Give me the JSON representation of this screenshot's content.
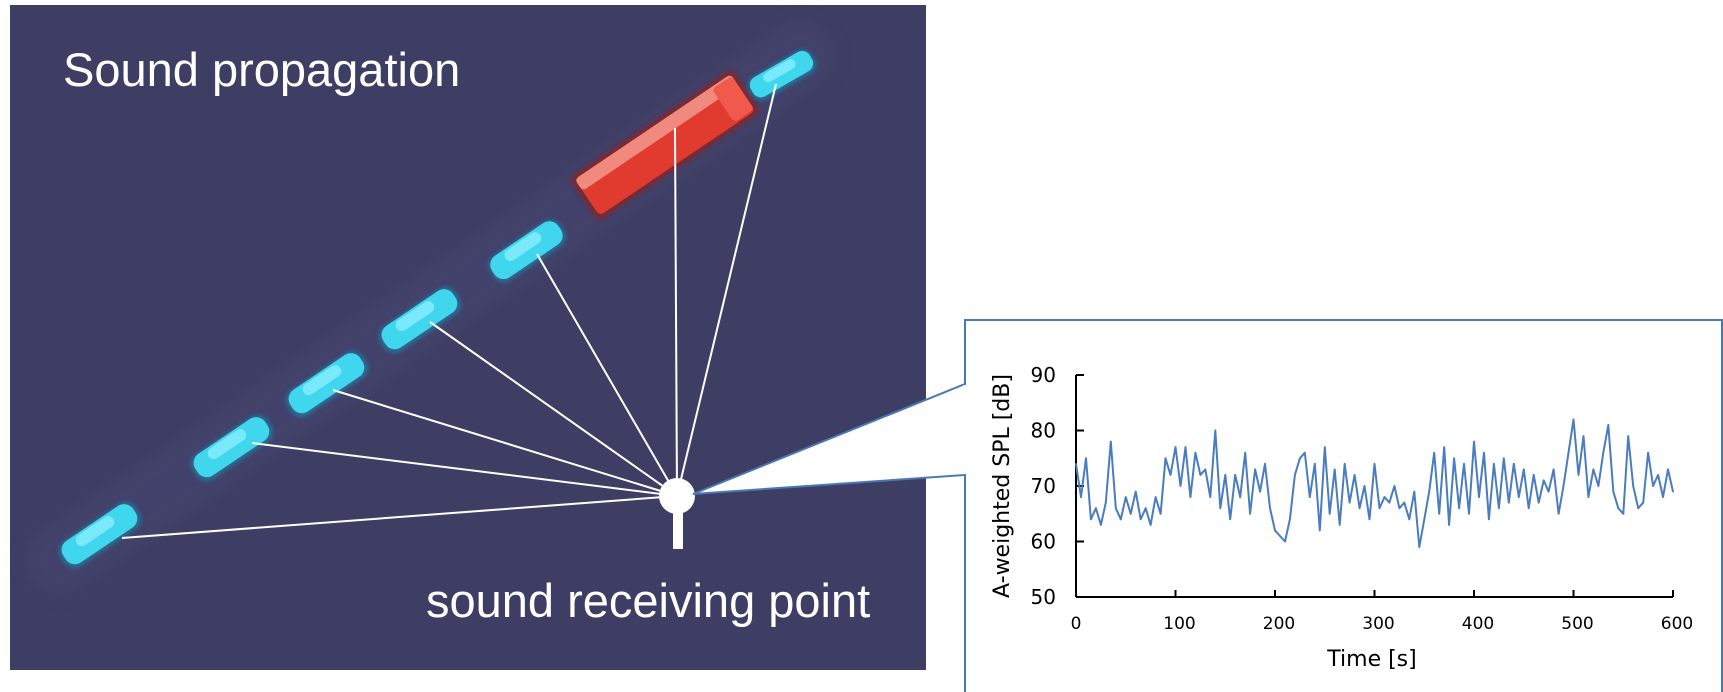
{
  "scene": {
    "title": "Sound propagation",
    "receiver_label": "sound receiving point",
    "colors": {
      "background": "#3e3e64",
      "vehicle_car": "#3fd6ee",
      "vehicle_truck": "#e03b2e",
      "ray": "#ffffff",
      "zoom_callout": "#4a78b0"
    },
    "vehicles": [
      {
        "kind": "car"
      },
      {
        "kind": "car"
      },
      {
        "kind": "car"
      },
      {
        "kind": "car"
      },
      {
        "kind": "car"
      },
      {
        "kind": "car"
      },
      {
        "kind": "truck"
      },
      {
        "kind": "car"
      }
    ]
  },
  "chart_data": {
    "type": "line",
    "xlabel": "Time [s]",
    "ylabel": "A-weighted SPL [dB]",
    "xlim": [
      0,
      600
    ],
    "ylim": [
      50,
      90
    ],
    "x_ticks": [
      0,
      100,
      200,
      300,
      400,
      500,
      600
    ],
    "y_ticks": [
      50,
      60,
      70,
      80,
      90
    ],
    "line_color": "#4a7cc0",
    "series": [
      {
        "x": [
          0,
          5,
          10,
          15,
          20,
          25,
          30,
          35,
          40,
          45,
          50,
          55,
          60,
          65,
          70,
          75,
          80,
          85,
          90,
          95,
          100,
          105,
          110,
          115,
          120,
          125,
          130,
          135,
          140,
          145,
          150,
          155,
          160,
          165,
          170,
          175,
          180,
          185,
          190,
          195,
          200,
          205,
          210,
          215,
          220,
          225,
          230,
          235,
          240,
          245,
          250,
          255,
          260,
          265,
          270,
          275,
          280,
          285,
          290,
          295,
          300,
          305,
          310,
          315,
          320,
          325,
          330,
          335,
          340,
          345,
          350,
          355,
          360,
          365,
          370,
          375,
          380,
          385,
          390,
          395,
          400,
          405,
          410,
          415,
          420,
          425,
          430,
          435,
          440,
          445,
          450,
          455,
          460,
          465,
          470,
          475,
          480,
          485,
          490,
          495,
          500,
          505,
          510,
          515,
          520,
          525,
          530,
          535,
          540,
          545,
          550,
          555,
          560,
          565,
          570,
          575,
          580,
          585,
          590,
          595,
          600
        ],
        "values": [
          74,
          68,
          75,
          64,
          66,
          63,
          67,
          78,
          66,
          64,
          68,
          65,
          69,
          64,
          66,
          63,
          68,
          65,
          75,
          72,
          77,
          70,
          77,
          68,
          76,
          72,
          73,
          68,
          80,
          66,
          72,
          64,
          72,
          68,
          76,
          65,
          73,
          69,
          74,
          66,
          62,
          61,
          60,
          64,
          72,
          75,
          76,
          68,
          74,
          62,
          77,
          65,
          73,
          63,
          74,
          67,
          72,
          66,
          70,
          64,
          74,
          66,
          68,
          67,
          70,
          66,
          67,
          64,
          69,
          59,
          64,
          69,
          76,
          65,
          77,
          63,
          75,
          66,
          74,
          65,
          78,
          68,
          76,
          64,
          74,
          66,
          75,
          67,
          74,
          68,
          73,
          66,
          72,
          67,
          71,
          69,
          73,
          65,
          70,
          76,
          82,
          72,
          79,
          68,
          73,
          70,
          76,
          81,
          69,
          66,
          65,
          79,
          70,
          66,
          67,
          76,
          70,
          72,
          68,
          73,
          69
        ]
      }
    ]
  }
}
